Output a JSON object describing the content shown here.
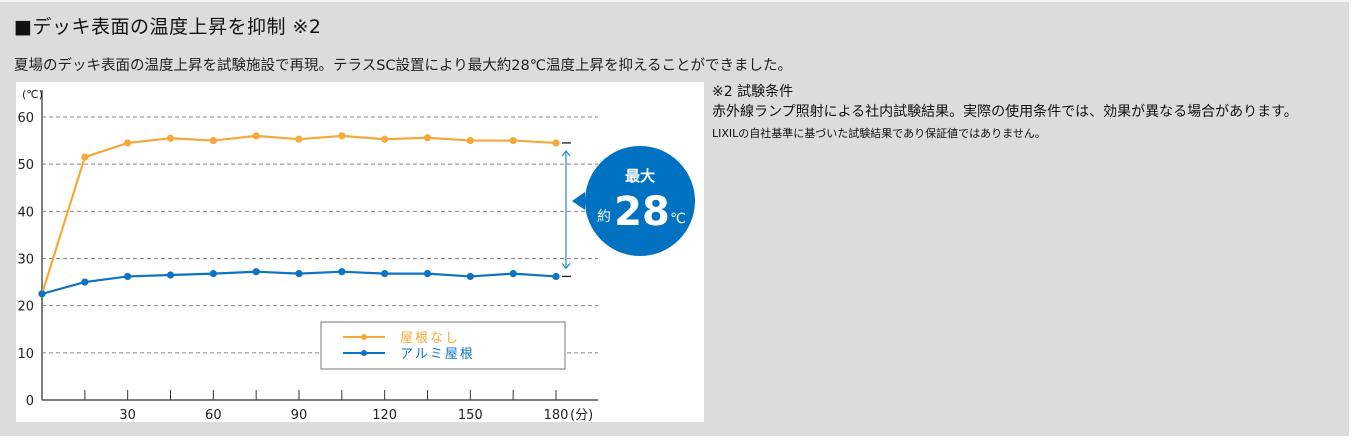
{
  "heading": "■デッキ表面の温度上昇を抑制 ※2",
  "lead": "夏場のデッキ表面の温度上昇を試験施設で再現。テラスSC設置により最大約28℃温度上昇を抑えることができました。",
  "notes": {
    "head": "※2 試験条件",
    "body": "赤外線ランプ照射による社内試験結果。実際の使用条件では、効果が異なる場合があります。",
    "small": "LIXILの自社基準に基づいた試験結果であり保証値ではありません。"
  },
  "callout": {
    "line1": "最大",
    "prefix": "約",
    "value": "28",
    "unit": "℃",
    "color": "#0072c1"
  },
  "chart_data": {
    "type": "line",
    "title": "",
    "xlabel": "(分)",
    "ylabel": "(℃)",
    "x": [
      0,
      15,
      30,
      45,
      60,
      75,
      90,
      105,
      120,
      135,
      150,
      165,
      180
    ],
    "xticks": [
      30,
      60,
      90,
      120,
      150,
      180
    ],
    "yticks": [
      0,
      10,
      20,
      30,
      40,
      50,
      60
    ],
    "xlim": [
      0,
      180
    ],
    "ylim": [
      0,
      60
    ],
    "grid": "horizontal dashed",
    "legend_position": "lower right inside",
    "series": [
      {
        "name": "屋根なし",
        "color": "#f5a93b",
        "values": [
          22.5,
          51.5,
          54.5,
          55.5,
          55,
          56,
          55.3,
          56,
          55.3,
          55.6,
          55,
          55,
          54.5
        ]
      },
      {
        "name": "アルミ屋根",
        "color": "#0b74c4",
        "values": [
          22.5,
          25,
          26.2,
          26.5,
          26.8,
          27.2,
          26.8,
          27.2,
          26.8,
          26.8,
          26.2,
          26.8,
          26.2
        ]
      }
    ],
    "annotation": "最大約28℃"
  }
}
